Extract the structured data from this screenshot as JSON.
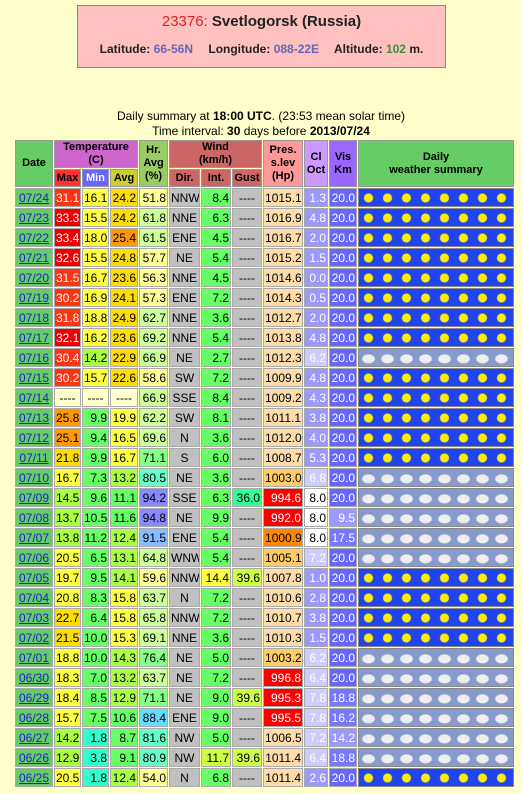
{
  "header": {
    "station_id": "23376:",
    "station_name": "Svetlogorsk (Russia)",
    "latitude_label": "Latitude:",
    "latitude": "66-56N",
    "longitude_label": "Longitude:",
    "longitude": "088-22E",
    "altitude_label": "Altitude:",
    "altitude": "102",
    "altitude_unit": "m."
  },
  "summary": {
    "prefix": "Daily summary at",
    "time": "18:00 UTC",
    "suffix": ". (23:53 mean solar time)"
  },
  "interval": {
    "prefix": "Time interval:",
    "days": "30",
    "middle": "days before",
    "date": "2013/07/24"
  },
  "table": {
    "headers": {
      "date": "Date",
      "temperature": "Temperature\n(C)",
      "max": "Max",
      "min": "Min",
      "avg": "Avg",
      "humidity": "Hr.\nAvg\n(%)",
      "wind": "Wind\n(km/h)",
      "dir": "Dir.",
      "int": "Int.",
      "gust": "Gust",
      "pressure": "Pres.\ns.lev\n(Hp)",
      "cloud": "Cl\nOct",
      "visibility": "Vis\nKm",
      "weather": "Daily\nweather summary"
    },
    "rows": [
      [
        "07/24",
        "31.1",
        "16.1",
        "24.2",
        "51.8",
        "NNW",
        "8.4",
        "----",
        "1015.1",
        "1.3",
        "20.0"
      ],
      [
        "07/23",
        "33.3",
        "15.5",
        "24.2",
        "61.8",
        "NNE",
        "6.3",
        "----",
        "1016.9",
        "4.8",
        "20.0"
      ],
      [
        "07/22",
        "33.4",
        "18.0",
        "25.4",
        "61.5",
        "ENE",
        "4.5",
        "----",
        "1016.7",
        "2.0",
        "20.0"
      ],
      [
        "07/21",
        "32.6",
        "15.5",
        "24.8",
        "57.7",
        "NE",
        "5.4",
        "----",
        "1015.2",
        "1.5",
        "20.0"
      ],
      [
        "07/20",
        "31.5",
        "16.7",
        "23.6",
        "56.3",
        "NNE",
        "4.5",
        "----",
        "1014.6",
        "0.0",
        "20.0"
      ],
      [
        "07/19",
        "30.2",
        "16.9",
        "24.1",
        "57.3",
        "ENE",
        "7.2",
        "----",
        "1014.3",
        "0.5",
        "20.0"
      ],
      [
        "07/18",
        "31.8",
        "18.8",
        "24.9",
        "62.7",
        "NNE",
        "3.6",
        "----",
        "1012.7",
        "2.0",
        "20.0"
      ],
      [
        "07/17",
        "32.1",
        "16.2",
        "23.6",
        "69.2",
        "NNE",
        "5.4",
        "----",
        "1013.8",
        "4.8",
        "20.0"
      ],
      [
        "07/16",
        "30.4",
        "14.2",
        "22.9",
        "66.9",
        "NE",
        "2.7",
        "----",
        "1012.3",
        "6.2",
        "20.0"
      ],
      [
        "07/15",
        "30.2",
        "15.7",
        "22.6",
        "58.6",
        "SW",
        "7.2",
        "----",
        "1009.9",
        "4.8",
        "20.0"
      ],
      [
        "07/14",
        "----",
        "----",
        "----",
        "66.9",
        "SSE",
        "8.4",
        "----",
        "1009.2",
        "4.3",
        "20.0"
      ],
      [
        "07/13",
        "25.8",
        "9.9",
        "19.9",
        "62.2",
        "SW",
        "8.1",
        "----",
        "1011.1",
        "3.8",
        "20.0"
      ],
      [
        "07/12",
        "25.1",
        "9.4",
        "16.5",
        "69.6",
        "N",
        "3.6",
        "----",
        "1012.0",
        "4.0",
        "20.0"
      ],
      [
        "07/11",
        "21.8",
        "9.9",
        "16.7",
        "71.1",
        "S",
        "6.0",
        "----",
        "1008.7",
        "5.3",
        "20.0"
      ],
      [
        "07/10",
        "16.7",
        "7.3",
        "13.2",
        "80.5",
        "NE",
        "3.6",
        "----",
        "1003.0",
        "6.8",
        "20.0"
      ],
      [
        "07/09",
        "14.5",
        "9.6",
        "11.1",
        "94.2",
        "SSE",
        "6.3",
        "36.0",
        "994.6",
        "8.0",
        "20.0"
      ],
      [
        "07/08",
        "13.7",
        "10.5",
        "11.6",
        "94.8",
        "NE",
        "9.9",
        "----",
        "992.0",
        "8.0",
        "9.5"
      ],
      [
        "07/07",
        "13.8",
        "11.2",
        "12.4",
        "91.5",
        "ENE",
        "5.4",
        "----",
        "1000.9",
        "8.0",
        "17.5"
      ],
      [
        "07/06",
        "20.5",
        "6.5",
        "13.1",
        "64.8",
        "WNW",
        "5.4",
        "----",
        "1005.1",
        "7.2",
        "20.0"
      ],
      [
        "07/05",
        "19.7",
        "9.5",
        "14.1",
        "59.6",
        "NNW",
        "14.4",
        "39.6",
        "1007.8",
        "1.0",
        "20.0"
      ],
      [
        "07/04",
        "20.8",
        "8.3",
        "15.8",
        "63.7",
        "N",
        "7.2",
        "----",
        "1010.6",
        "2.8",
        "20.0"
      ],
      [
        "07/03",
        "22.7",
        "6.4",
        "15.8",
        "65.8",
        "NNW",
        "7.2",
        "----",
        "1010.7",
        "3.8",
        "20.0"
      ],
      [
        "07/02",
        "21.5",
        "10.0",
        "15.3",
        "69.1",
        "NNE",
        "3.6",
        "----",
        "1010.3",
        "1.5",
        "20.0"
      ],
      [
        "07/01",
        "18.8",
        "10.0",
        "14.3",
        "76.4",
        "NE",
        "5.0",
        "----",
        "1003.2",
        "6.2",
        "20.0"
      ],
      [
        "06/30",
        "18.3",
        "7.0",
        "13.2",
        "63.7",
        "NE",
        "7.2",
        "----",
        "996.8",
        "6.4",
        "20.0"
      ],
      [
        "06/29",
        "18.4",
        "8.5",
        "12.9",
        "71.1",
        "NE",
        "9.0",
        "39.6",
        "995.3",
        "7.8",
        "18.8"
      ],
      [
        "06/28",
        "15.7",
        "7.5",
        "10.6",
        "88.4",
        "ENE",
        "9.0",
        "----",
        "995.5",
        "7.8",
        "16.2"
      ],
      [
        "06/27",
        "14.2",
        "1.8",
        "8.7",
        "81.6",
        "NW",
        "5.0",
        "----",
        "1006.5",
        "7.2",
        "14.2"
      ],
      [
        "06/26",
        "12.9",
        "3.8",
        "9.1",
        "80.9",
        "NW",
        "11.7",
        "39.6",
        "1011.4",
        "6.4",
        "18.8"
      ],
      [
        "06/25",
        "20.5",
        "1.8",
        "12.4",
        "54.0",
        "N",
        "6.8",
        "----",
        "1011.4",
        "2.6",
        "20.0"
      ]
    ]
  }
}
